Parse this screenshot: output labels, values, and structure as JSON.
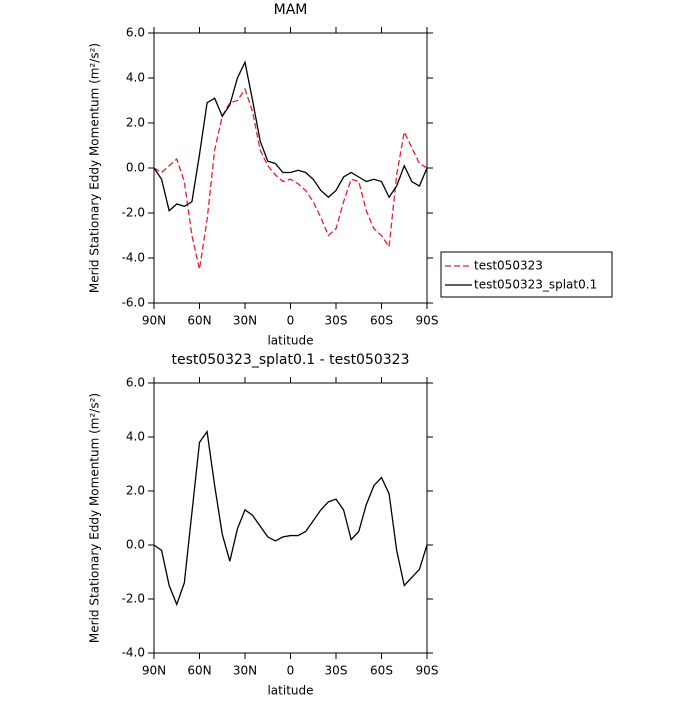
{
  "chart_data": [
    {
      "type": "line",
      "title": "MAM",
      "xlabel": "latitude",
      "ylabel": "Merid Stationary Eddy Momentum (m²/s²)",
      "x": [
        90,
        85,
        80,
        75,
        70,
        65,
        60,
        55,
        50,
        45,
        40,
        35,
        30,
        25,
        20,
        15,
        10,
        5,
        0,
        -5,
        -10,
        -15,
        -20,
        -25,
        -30,
        -35,
        -40,
        -45,
        -50,
        -55,
        -60,
        -65,
        -70,
        -75,
        -80,
        -85,
        -90
      ],
      "xlim": [
        90,
        -90
      ],
      "xticks": [
        {
          "value": 90,
          "label": "90N"
        },
        {
          "value": 60,
          "label": "60N"
        },
        {
          "value": 30,
          "label": "30N"
        },
        0,
        {
          "value": -30,
          "label": "30S"
        },
        {
          "value": -60,
          "label": "60S"
        },
        {
          "value": -90,
          "label": "90S"
        }
      ],
      "ylim": [
        -6,
        6
      ],
      "yticks": [
        {
          "value": -6,
          "label": "-6.0"
        },
        {
          "value": -4,
          "label": "-4.0"
        },
        {
          "value": -2,
          "label": "-2.0"
        },
        {
          "value": 0,
          "label": "0.0"
        },
        {
          "value": 2,
          "label": "2.0"
        },
        {
          "value": 4,
          "label": "4.0"
        },
        {
          "value": 6,
          "label": "6.0"
        }
      ],
      "legend": "right",
      "series": [
        {
          "name": "test050323",
          "color": "#e8202a",
          "dash": "dashed",
          "values": [
            0,
            -0.2,
            0.1,
            0.4,
            -0.6,
            -3.0,
            -4.5,
            -2.3,
            0.8,
            2.3,
            2.9,
            3.0,
            3.5,
            2.5,
            0.8,
            0.1,
            -0.3,
            -0.6,
            -0.5,
            -0.7,
            -1.0,
            -1.5,
            -2.2,
            -3.0,
            -2.7,
            -1.5,
            -0.5,
            -0.6,
            -1.9,
            -2.7,
            -3.0,
            -3.5,
            -0.3,
            1.6,
            0.9,
            0.2,
            0
          ]
        },
        {
          "name": "test050323_splat0.1",
          "color": "#000000",
          "dash": "solid",
          "values": [
            0,
            -0.5,
            -1.9,
            -1.6,
            -1.7,
            -1.5,
            0.6,
            2.9,
            3.1,
            2.3,
            2.8,
            4.0,
            4.7,
            3.0,
            1.2,
            0.3,
            0.2,
            -0.2,
            -0.2,
            -0.1,
            -0.2,
            -0.5,
            -1.0,
            -1.3,
            -1.0,
            -0.4,
            -0.2,
            -0.4,
            -0.6,
            -0.5,
            -0.6,
            -1.3,
            -0.8,
            0.1,
            -0.6,
            -0.8,
            0
          ]
        }
      ]
    },
    {
      "type": "line",
      "title": "test050323_splat0.1 - test050323",
      "xlabel": "latitude",
      "ylabel": "Merid Stationary Eddy Momentum (m²/s²)",
      "x": [
        90,
        85,
        80,
        75,
        70,
        65,
        60,
        55,
        50,
        45,
        40,
        35,
        30,
        25,
        20,
        15,
        10,
        5,
        0,
        -5,
        -10,
        -15,
        -20,
        -25,
        -30,
        -35,
        -40,
        -45,
        -50,
        -55,
        -60,
        -65,
        -70,
        -75,
        -80,
        -85,
        -90
      ],
      "xlim": [
        90,
        -90
      ],
      "xticks": [
        {
          "value": 90,
          "label": "90N"
        },
        {
          "value": 60,
          "label": "60N"
        },
        {
          "value": 30,
          "label": "30N"
        },
        0,
        {
          "value": -30,
          "label": "30S"
        },
        {
          "value": -60,
          "label": "60S"
        },
        {
          "value": -90,
          "label": "90S"
        }
      ],
      "ylim": [
        -4,
        6
      ],
      "yticks": [
        {
          "value": -4,
          "label": "-4.0"
        },
        {
          "value": -2,
          "label": "-2.0"
        },
        {
          "value": 0,
          "label": "0.0"
        },
        {
          "value": 2,
          "label": "2.0"
        },
        {
          "value": 4,
          "label": "4.0"
        },
        {
          "value": 6,
          "label": "6.0"
        }
      ],
      "series": [
        {
          "color": "#000000",
          "dash": "solid",
          "values": [
            0,
            -0.2,
            -1.5,
            -2.2,
            -1.4,
            1.2,
            3.8,
            4.2,
            2.2,
            0.4,
            -0.6,
            0.6,
            1.3,
            1.1,
            0.7,
            0.3,
            0.15,
            0.3,
            0.35,
            0.35,
            0.5,
            0.9,
            1.3,
            1.6,
            1.7,
            1.3,
            0.2,
            0.5,
            1.5,
            2.2,
            2.5,
            1.9,
            -0.2,
            -1.5,
            -1.2,
            -0.9,
            0
          ]
        }
      ]
    }
  ]
}
